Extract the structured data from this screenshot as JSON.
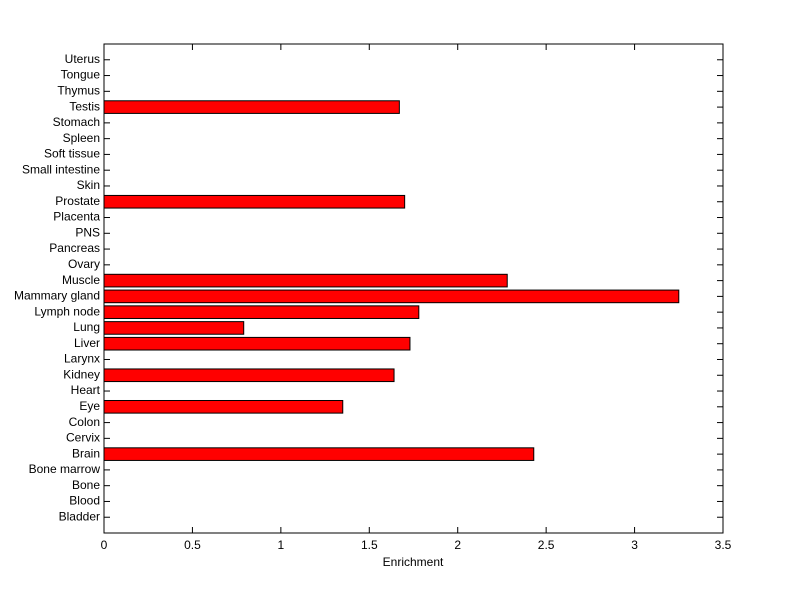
{
  "chart_data": {
    "type": "barh",
    "xlabel": "Enrichment",
    "categories": [
      "Bladder",
      "Blood",
      "Bone",
      "Bone marrow",
      "Brain",
      "Cervix",
      "Colon",
      "Eye",
      "Heart",
      "Kidney",
      "Larynx",
      "Liver",
      "Lung",
      "Lymph node",
      "Mammary gland",
      "Muscle",
      "Ovary",
      "Pancreas",
      "PNS",
      "Placenta",
      "Prostate",
      "Skin",
      "Small intestine",
      "Soft tissue",
      "Spleen",
      "Stomach",
      "Testis",
      "Thymus",
      "Tongue",
      "Uterus"
    ],
    "values": [
      0,
      0,
      0,
      0,
      2.43,
      0,
      0,
      1.35,
      0,
      1.64,
      0,
      1.73,
      0.79,
      1.78,
      3.25,
      2.28,
      0,
      0,
      0,
      0,
      1.7,
      0,
      0,
      0,
      0,
      0,
      1.67,
      0,
      0,
      0
    ],
    "color": "#ff0000",
    "xlim": [
      0,
      3.5
    ],
    "xticks": [
      0,
      0.5,
      1,
      1.5,
      2,
      2.5,
      3,
      3.5
    ],
    "grid": false
  }
}
